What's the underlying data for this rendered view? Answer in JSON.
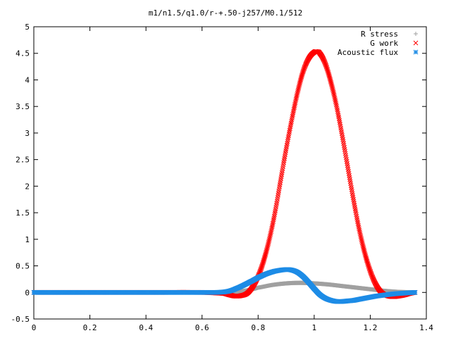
{
  "chart_data": {
    "type": "scatter",
    "title": "m1/n1.5/q1.0/r-+.50-j257/M0.1/512",
    "xlabel": "",
    "ylabel": "",
    "xlim": [
      0,
      1.4
    ],
    "ylim": [
      -0.5,
      5
    ],
    "xticks": [
      "0",
      "0.2",
      "0.4",
      "0.6",
      "0.8",
      "1",
      "1.2",
      "1.4"
    ],
    "yticks": [
      "-0.5",
      "0",
      "0.5",
      "1",
      "1.5",
      "2",
      "2.5",
      "3",
      "3.5",
      "4",
      "4.5",
      "5"
    ],
    "grid": false,
    "legend_position": "top-right",
    "series": [
      {
        "name": "R stress",
        "marker": "+",
        "color": "#a0a0a0",
        "x": [
          0.0,
          0.1,
          0.2,
          0.3,
          0.4,
          0.5,
          0.6,
          0.65,
          0.7,
          0.72,
          0.75,
          0.78,
          0.8,
          0.85,
          0.9,
          0.95,
          1.0,
          1.05,
          1.1,
          1.15,
          1.2,
          1.25,
          1.3,
          1.36
        ],
        "y": [
          0.0,
          0.0,
          0.0,
          0.0,
          0.0,
          0.0,
          0.0,
          0.0,
          0.0,
          0.01,
          0.03,
          0.06,
          0.09,
          0.14,
          0.17,
          0.18,
          0.17,
          0.15,
          0.12,
          0.09,
          0.06,
          0.03,
          0.01,
          0.0
        ]
      },
      {
        "name": "G work",
        "marker": "x",
        "color": "#ff0000",
        "x": [
          0.0,
          0.2,
          0.4,
          0.6,
          0.68,
          0.7,
          0.72,
          0.74,
          0.76,
          0.78,
          0.8,
          0.82,
          0.84,
          0.86,
          0.88,
          0.9,
          0.92,
          0.94,
          0.96,
          0.98,
          1.0,
          1.01,
          1.02,
          1.04,
          1.06,
          1.08,
          1.1,
          1.12,
          1.14,
          1.16,
          1.18,
          1.2,
          1.22,
          1.24,
          1.26,
          1.28,
          1.3,
          1.32,
          1.34,
          1.36
        ],
        "y": [
          0.0,
          0.0,
          0.0,
          0.0,
          -0.02,
          -0.05,
          -0.07,
          -0.06,
          -0.02,
          0.1,
          0.3,
          0.6,
          1.0,
          1.5,
          2.1,
          2.7,
          3.25,
          3.75,
          4.15,
          4.4,
          4.52,
          4.53,
          4.5,
          4.3,
          3.95,
          3.5,
          2.95,
          2.35,
          1.75,
          1.2,
          0.75,
          0.4,
          0.15,
          0.0,
          -0.06,
          -0.08,
          -0.07,
          -0.05,
          -0.02,
          0.0
        ]
      },
      {
        "name": "Acoustic flux",
        "marker": "*",
        "color": "#1e8ce6",
        "x": [
          0.0,
          0.1,
          0.2,
          0.3,
          0.4,
          0.5,
          0.6,
          0.65,
          0.68,
          0.7,
          0.72,
          0.75,
          0.78,
          0.8,
          0.83,
          0.86,
          0.9,
          0.92,
          0.94,
          0.96,
          0.98,
          1.0,
          1.02,
          1.04,
          1.06,
          1.08,
          1.1,
          1.12,
          1.14,
          1.16,
          1.18,
          1.2,
          1.22,
          1.25,
          1.28,
          1.3,
          1.33,
          1.36
        ],
        "y": [
          0.0,
          0.0,
          0.0,
          0.0,
          0.0,
          0.0,
          0.0,
          0.0,
          0.01,
          0.03,
          0.07,
          0.14,
          0.22,
          0.28,
          0.35,
          0.4,
          0.43,
          0.42,
          0.38,
          0.3,
          0.19,
          0.07,
          -0.04,
          -0.11,
          -0.15,
          -0.17,
          -0.17,
          -0.16,
          -0.15,
          -0.13,
          -0.11,
          -0.09,
          -0.07,
          -0.05,
          -0.03,
          -0.02,
          -0.01,
          0.0
        ]
      }
    ]
  }
}
